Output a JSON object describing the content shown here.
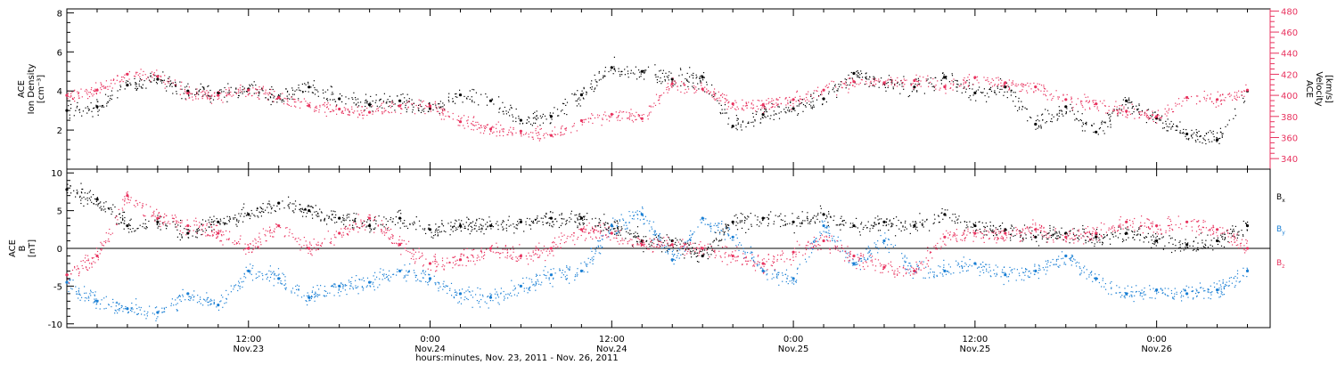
{
  "colors": {
    "black": "#000000",
    "pink": "#e8335f",
    "blue": "#1a7fd4"
  },
  "chart_data": [
    {
      "type": "scatter",
      "ylabel_left": [
        "ACE",
        "Ion Density",
        "[cm⁻³]"
      ],
      "ylabel_right": [
        "ACE",
        "Velocity",
        "[km/s]"
      ],
      "ylim_left": [
        0,
        8.2
      ],
      "ylim_right": [
        330,
        482
      ],
      "yticks_left": [
        "2",
        "4",
        "6",
        "8"
      ],
      "yticks_right": [
        "340",
        "360",
        "380",
        "400",
        "420",
        "440",
        "460",
        "480"
      ],
      "series": [
        {
          "color": "black",
          "axis": "left",
          "x": [
            0,
            2,
            4,
            6,
            8,
            10,
            12,
            14,
            16,
            18,
            20,
            22,
            24,
            26,
            28,
            30,
            32,
            34,
            36,
            38,
            40,
            42,
            44,
            46,
            48,
            50,
            52,
            54,
            56,
            58,
            60,
            62,
            64,
            66,
            68,
            70,
            72,
            74,
            76,
            78
          ],
          "y": [
            3.0,
            3.2,
            4.3,
            4.6,
            4.0,
            3.9,
            4.1,
            3.7,
            4.2,
            3.6,
            3.3,
            3.5,
            3.1,
            3.8,
            3.5,
            2.5,
            2.7,
            3.8,
            5.2,
            5.0,
            4.6,
            4.7,
            2.2,
            2.8,
            3.1,
            3.6,
            4.9,
            4.4,
            4.2,
            4.7,
            3.9,
            4.2,
            2.3,
            3.2,
            1.9,
            3.5,
            2.6,
            1.8,
            1.5,
            4.0
          ]
        },
        {
          "color": "pink",
          "axis": "right",
          "x": [
            0,
            2,
            4,
            6,
            8,
            10,
            12,
            14,
            16,
            18,
            20,
            22,
            24,
            26,
            28,
            30,
            32,
            34,
            36,
            38,
            40,
            42,
            44,
            46,
            48,
            50,
            52,
            54,
            56,
            58,
            60,
            62,
            64,
            66,
            68,
            70,
            72,
            74,
            76,
            78
          ],
          "y": [
            400,
            405,
            420,
            418,
            402,
            400,
            405,
            398,
            390,
            387,
            384,
            390,
            390,
            375,
            368,
            366,
            362,
            376,
            382,
            378,
            411,
            406,
            392,
            391,
            396,
            405,
            413,
            412,
            414,
            408,
            417,
            412,
            408,
            396,
            392,
            385,
            380,
            398,
            396,
            405
          ]
        }
      ]
    },
    {
      "type": "scatter",
      "ylabel": [
        "ACE",
        "B",
        "[nT]"
      ],
      "ylim": [
        -10.5,
        10.5
      ],
      "yticks": [
        "-10",
        "-5",
        "0",
        "5",
        "10"
      ],
      "legend": {
        "position": "right",
        "entries": [
          {
            "text": "Bx",
            "color": "black"
          },
          {
            "text": "By",
            "color": "blue"
          },
          {
            "text": "Bz",
            "color": "pink"
          }
        ]
      },
      "series": [
        {
          "name": "Bx",
          "color": "black",
          "x": [
            0,
            2,
            4,
            6,
            8,
            10,
            12,
            14,
            16,
            18,
            20,
            22,
            24,
            26,
            28,
            30,
            32,
            34,
            36,
            38,
            40,
            42,
            44,
            46,
            48,
            50,
            52,
            54,
            56,
            58,
            60,
            62,
            64,
            66,
            68,
            70,
            72,
            74,
            76,
            78
          ],
          "y": [
            7.8,
            6.5,
            3.0,
            3.5,
            2.0,
            3.5,
            4.5,
            6.0,
            5.0,
            4.0,
            3.0,
            4.0,
            2.5,
            3.0,
            3.0,
            3.5,
            4.0,
            4.0,
            3.0,
            1.0,
            1.0,
            -1.0,
            3.5,
            4.0,
            3.5,
            4.5,
            3.0,
            3.5,
            3.0,
            4.5,
            3.0,
            2.5,
            1.5,
            2.0,
            1.5,
            2.0,
            1.0,
            0.5,
            1.0,
            3.0
          ]
        },
        {
          "name": "By",
          "color": "blue",
          "x": [
            0,
            2,
            4,
            6,
            8,
            10,
            12,
            14,
            16,
            18,
            20,
            22,
            24,
            26,
            28,
            30,
            32,
            34,
            36,
            38,
            40,
            42,
            44,
            46,
            48,
            50,
            52,
            54,
            56,
            58,
            60,
            62,
            64,
            66,
            68,
            70,
            72,
            74,
            76,
            78
          ],
          "y": [
            -4.5,
            -7.0,
            -8.0,
            -8.5,
            -6.0,
            -7.5,
            -3.0,
            -4.0,
            -6.5,
            -5.0,
            -4.5,
            -3.0,
            -4.0,
            -6.0,
            -6.5,
            -5.0,
            -3.5,
            -3.0,
            3.0,
            4.5,
            -1.5,
            4.0,
            1.5,
            -3.0,
            -4.0,
            3.0,
            -2.0,
            1.0,
            -3.0,
            -3.0,
            -2.0,
            -3.5,
            -3.0,
            -1.0,
            -4.0,
            -6.0,
            -5.5,
            -6.0,
            -5.5,
            -3.0
          ]
        },
        {
          "name": "Bz",
          "color": "pink",
          "x": [
            0,
            2,
            4,
            6,
            8,
            10,
            12,
            14,
            16,
            18,
            20,
            22,
            24,
            26,
            28,
            30,
            32,
            34,
            36,
            38,
            40,
            42,
            44,
            46,
            48,
            50,
            52,
            54,
            56,
            58,
            60,
            62,
            64,
            66,
            68,
            70,
            72,
            74,
            76,
            78
          ],
          "y": [
            -3.5,
            -1.0,
            7.0,
            4.0,
            3.0,
            2.0,
            0.0,
            3.0,
            0.0,
            2.0,
            4.0,
            0.5,
            -2.0,
            -1.5,
            0.0,
            -1.0,
            0.0,
            2.5,
            2.0,
            0.5,
            0.5,
            0.0,
            -1.0,
            -2.0,
            -0.5,
            1.0,
            -1.0,
            -2.5,
            -3.0,
            1.5,
            2.0,
            2.0,
            2.5,
            1.5,
            2.0,
            3.5,
            3.0,
            3.5,
            2.5,
            0.0
          ]
        }
      ]
    }
  ],
  "x_axis": {
    "range_hours": [
      0,
      79.5
    ],
    "ticks": [
      {
        "hour": 12,
        "time": "12:00",
        "date": "Nov.23"
      },
      {
        "hour": 24,
        "time": "0:00",
        "date": "Nov.24"
      },
      {
        "hour": 36,
        "time": "12:00",
        "date": "Nov.24"
      },
      {
        "hour": 48,
        "time": "0:00",
        "date": "Nov.25"
      },
      {
        "hour": 60,
        "time": "12:00",
        "date": "Nov.25"
      },
      {
        "hour": 72,
        "time": "0:00",
        "date": "Nov.26"
      }
    ],
    "label": "hours:minutes, Nov. 23, 2011 - Nov. 26, 2011"
  }
}
